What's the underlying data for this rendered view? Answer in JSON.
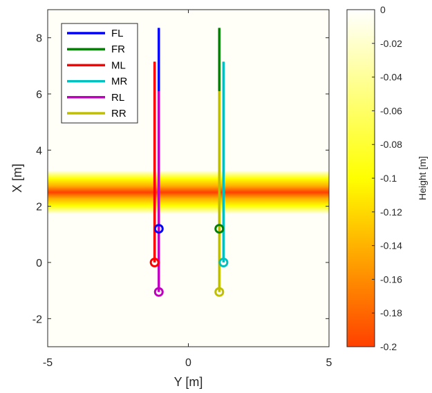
{
  "chart_data": {
    "type": "line",
    "xlabel": "Y [m]",
    "ylabel": "X [m]",
    "xlim": [
      -5,
      5
    ],
    "ylim": [
      -3,
      9
    ],
    "xticks": [
      "-5",
      "0",
      "5"
    ],
    "yticks": [
      "-2",
      "0",
      "2",
      "4",
      "6",
      "8"
    ],
    "grid": false,
    "legend_position": "top-left",
    "series": [
      {
        "name": "FL",
        "color": "#0000ff",
        "x": [
          -1.05,
          -1.05
        ],
        "y": [
          1.2,
          8.35
        ],
        "marker_circle": [
          -1.05,
          1.2
        ]
      },
      {
        "name": "FR",
        "color": "#008000",
        "x": [
          1.1,
          1.1
        ],
        "y": [
          1.2,
          8.35
        ],
        "marker_circle": [
          1.1,
          1.2
        ]
      },
      {
        "name": "ML",
        "color": "#ff0000",
        "x": [
          -1.2,
          -1.2
        ],
        "y": [
          0.0,
          7.15
        ],
        "marker_circle": [
          -1.2,
          0.0
        ]
      },
      {
        "name": "MR",
        "color": "#00bfbf",
        "x": [
          1.25,
          1.25
        ],
        "y": [
          0.0,
          7.15
        ],
        "marker_circle": [
          1.25,
          0.0
        ]
      },
      {
        "name": "RL",
        "color": "#bf00bf",
        "x": [
          -1.05,
          -1.05
        ],
        "y": [
          -1.05,
          6.1
        ],
        "marker_circle": [
          -1.05,
          -1.05
        ]
      },
      {
        "name": "RR",
        "color": "#bfbf00",
        "x": [
          1.1,
          1.1
        ],
        "y": [
          -1.05,
          6.1
        ],
        "marker_circle": [
          1.1,
          -1.05
        ]
      }
    ],
    "heightmap": {
      "band_center_x": 2.5,
      "band_halfwidth_x": 0.75,
      "min_height": -0.2,
      "colormap": "autumn-to-white"
    },
    "colorbar": {
      "label": "Height [m]",
      "min": -0.2,
      "max": 0,
      "ticks": [
        "0",
        "-0.02",
        "-0.04",
        "-0.06",
        "-0.08",
        "-0.1",
        "-0.12",
        "-0.14",
        "-0.16",
        "-0.18",
        "-0.2"
      ],
      "tick_values": [
        0,
        -0.02,
        -0.04,
        -0.06,
        -0.08,
        -0.1,
        -0.12,
        -0.14,
        -0.16,
        -0.18,
        -0.2
      ]
    }
  }
}
